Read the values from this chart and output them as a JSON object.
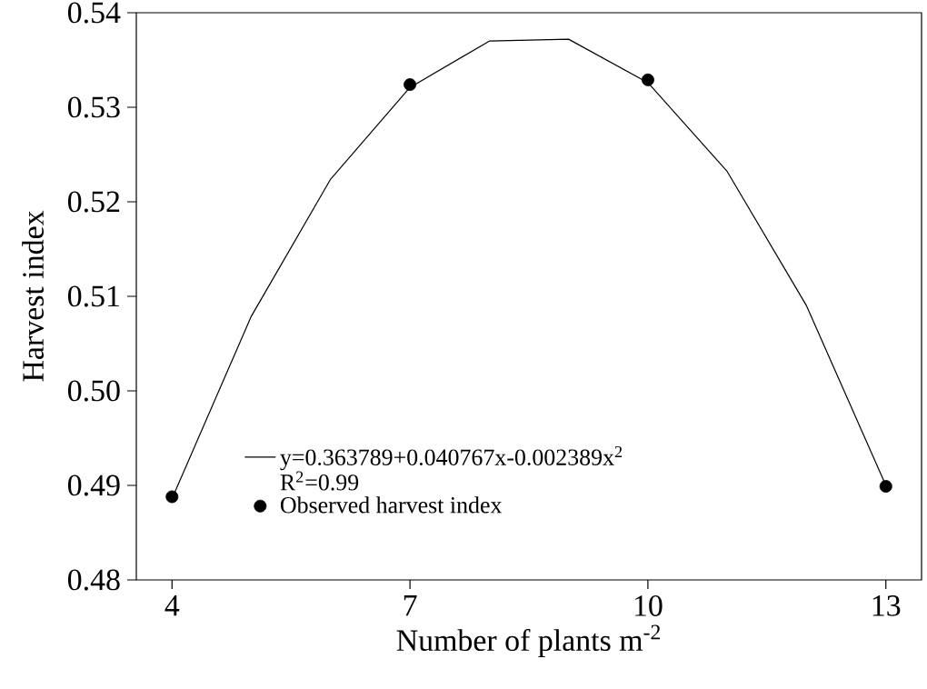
{
  "chart_data": {
    "type": "line",
    "xlabel": "Number of plants m$^{-2}$",
    "ylabel": "Harvest index",
    "xlim": [
      3.55,
      13.45
    ],
    "xticks": [
      4,
      7,
      10,
      13
    ],
    "ylim": [
      0.48,
      0.54
    ],
    "yticks": [
      {
        "value": 0.48,
        "label": "0.48"
      },
      {
        "value": 0.49,
        "label": "0.49"
      },
      {
        "value": 0.5,
        "label": "0.50"
      },
      {
        "value": 0.51,
        "label": "0.51"
      },
      {
        "value": 0.52,
        "label": "0.52"
      },
      {
        "value": 0.53,
        "label": "0.53"
      },
      {
        "value": 0.54,
        "label": "0.54"
      }
    ],
    "grid": false,
    "legend": "bottom",
    "annotations": [
      "R$^{2}$=0.99"
    ],
    "series": [
      {
        "name": "y=0.363789+0.040767x-0.002389x$^{2}$",
        "color": "#000000",
        "marker": "none",
        "line_style": "solid",
        "x": [
          4,
          5,
          6,
          7,
          8,
          9,
          10,
          11,
          12,
          13
        ],
        "values": [
          0.4886,
          0.5079,
          0.5224,
          0.5321,
          0.537,
          0.5372,
          0.5326,
          0.5232,
          0.509,
          0.49
        ]
      },
      {
        "type": "scatter",
        "name": "Observed harvest index",
        "color": "#000000",
        "marker": "circle",
        "x": [
          4,
          7,
          10,
          13
        ],
        "values": [
          0.4888,
          0.5324,
          0.5329,
          0.4899
        ]
      }
    ]
  }
}
